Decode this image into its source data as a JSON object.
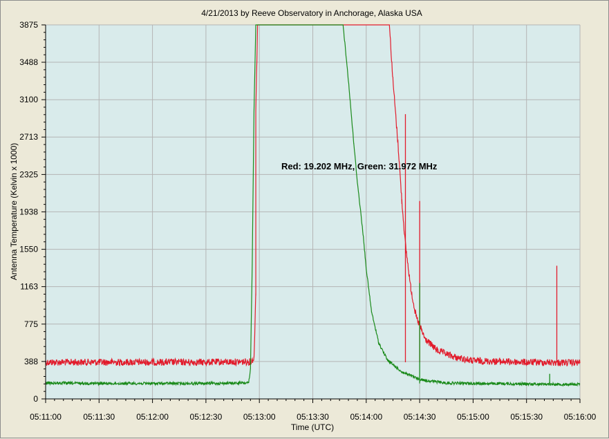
{
  "chart_data": {
    "type": "line",
    "title": "4/21/2013  by  Reeve Observatory  in  Anchorage, Alaska  USA",
    "xlabel": "Time (UTC)",
    "ylabel": "Antenna Temperature (Kelvin x 1000)",
    "annotation": "Red: 19.202 MHz, Green: 31.972 MHz",
    "xlim": [
      "05:11:00",
      "05:16:00"
    ],
    "ylim": [
      0,
      3875
    ],
    "x_ticks": [
      "05:11:00",
      "05:11:30",
      "05:12:00",
      "05:12:30",
      "05:13:00",
      "05:13:30",
      "05:14:00",
      "05:14:30",
      "05:15:00",
      "05:15:30",
      "05:16:00"
    ],
    "y_ticks": [
      "0",
      "388",
      "775",
      "1163",
      "1550",
      "1938",
      "2325",
      "2713",
      "3100",
      "3488",
      "3875"
    ],
    "grid": true,
    "background": "#d9ebeb",
    "series": [
      {
        "name": "19.202 MHz",
        "color": "#e21b2b",
        "points": [
          [
            "05:11:00",
            380
          ],
          [
            "05:11:30",
            380
          ],
          [
            "05:12:00",
            380
          ],
          [
            "05:12:30",
            380
          ],
          [
            "05:12:55",
            385
          ],
          [
            "05:12:57",
            420
          ],
          [
            "05:12:58",
            1100
          ],
          [
            "05:12:58",
            3000
          ],
          [
            "05:12:59",
            3875
          ],
          [
            "05:14:13",
            3875
          ],
          [
            "05:14:15",
            3300
          ],
          [
            "05:14:18",
            2600
          ],
          [
            "05:14:20",
            2050
          ],
          [
            "05:14:22",
            1600
          ],
          [
            "05:14:25",
            1150
          ],
          [
            "05:14:28",
            850
          ],
          [
            "05:14:33",
            620
          ],
          [
            "05:14:40",
            500
          ],
          [
            "05:14:50",
            430
          ],
          [
            "05:15:00",
            395
          ],
          [
            "05:15:30",
            380
          ],
          [
            "05:16:00",
            375
          ]
        ],
        "spikes": [
          {
            "time": "05:14:22",
            "value": 2950
          },
          {
            "time": "05:14:30",
            "value": 2050
          },
          {
            "time": "05:15:47",
            "value": 1380
          }
        ]
      },
      {
        "name": "31.972 MHz",
        "color": "#1a8a1a",
        "points": [
          [
            "05:11:00",
            165
          ],
          [
            "05:11:30",
            160
          ],
          [
            "05:12:00",
            160
          ],
          [
            "05:12:30",
            160
          ],
          [
            "05:12:54",
            165
          ],
          [
            "05:12:55",
            300
          ],
          [
            "05:12:56",
            1400
          ],
          [
            "05:12:57",
            3000
          ],
          [
            "05:12:58",
            3875
          ],
          [
            "05:13:47",
            3875
          ],
          [
            "05:13:50",
            3300
          ],
          [
            "05:13:53",
            2650
          ],
          [
            "05:13:55",
            2250
          ],
          [
            "05:13:58",
            1750
          ],
          [
            "05:14:00",
            1350
          ],
          [
            "05:14:03",
            900
          ],
          [
            "05:14:07",
            580
          ],
          [
            "05:14:12",
            400
          ],
          [
            "05:14:20",
            280
          ],
          [
            "05:14:30",
            200
          ],
          [
            "05:14:45",
            165
          ],
          [
            "05:15:00",
            160
          ],
          [
            "05:15:30",
            155
          ],
          [
            "05:16:00",
            150
          ]
        ],
        "spikes": [
          {
            "time": "05:14:30",
            "value": 1200
          },
          {
            "time": "05:15:43",
            "value": 260
          }
        ]
      }
    ]
  }
}
